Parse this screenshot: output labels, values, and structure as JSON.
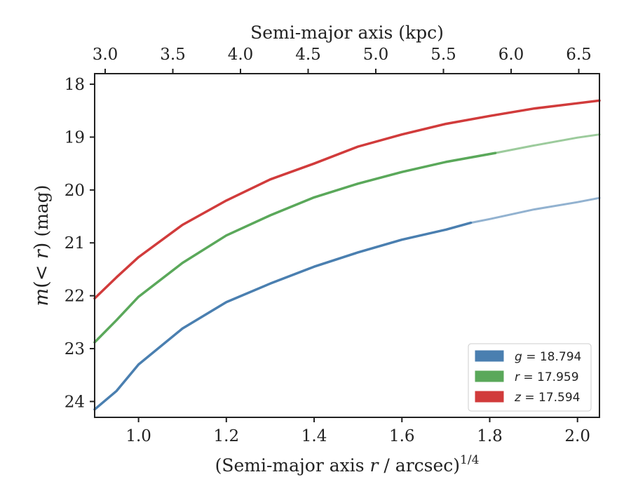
{
  "chart_data": {
    "type": "line",
    "xlabel": "(Semi-major axis r / arcsec)^1/4",
    "ylabel": "m(< r) (mag)",
    "top_xlabel": "Semi-major axis (kpc)",
    "xlim": [
      0.9,
      2.05
    ],
    "ylim": [
      24.3,
      17.8
    ],
    "y_inverted": true,
    "x_ticks": [
      "1.0",
      "1.2",
      "1.4",
      "1.6",
      "1.8",
      "2.0"
    ],
    "y_ticks": [
      "18",
      "19",
      "20",
      "21",
      "22",
      "23",
      "24"
    ],
    "top_x_ticks": [
      "3.0",
      "3.5",
      "4.0",
      "4.5",
      "5.0",
      "5.5",
      "6.0",
      "6.5"
    ],
    "grid": false,
    "legend_position": "lower-right",
    "series": [
      {
        "name": "g = 18.794",
        "color": "#4a7fb0",
        "x": [
          0.9,
          0.95,
          1.0,
          1.1,
          1.2,
          1.3,
          1.4,
          1.5,
          1.6,
          1.7,
          1.757,
          1.8,
          1.9,
          2.0,
          2.05
        ],
        "y": [
          24.15,
          23.8,
          23.3,
          22.62,
          22.12,
          21.77,
          21.45,
          21.18,
          20.94,
          20.75,
          20.62,
          20.55,
          20.37,
          20.23,
          20.15
        ],
        "measured_until": 1.757
      },
      {
        "name": "r = 17.959",
        "color": "#5aa85a",
        "x": [
          0.9,
          0.95,
          1.0,
          1.1,
          1.2,
          1.3,
          1.4,
          1.5,
          1.6,
          1.7,
          1.813,
          1.9,
          2.0,
          2.05
        ],
        "y": [
          22.88,
          22.46,
          22.02,
          21.38,
          20.86,
          20.48,
          20.14,
          19.88,
          19.66,
          19.47,
          19.3,
          19.16,
          19.01,
          18.95
        ],
        "measured_until": 1.813
      },
      {
        "name": "z = 17.594",
        "color": "#d13b3b",
        "x": [
          0.9,
          0.95,
          1.0,
          1.1,
          1.2,
          1.3,
          1.4,
          1.5,
          1.6,
          1.7,
          1.8,
          1.9,
          2.0,
          2.05
        ],
        "y": [
          22.05,
          21.65,
          21.27,
          20.66,
          20.2,
          19.8,
          19.5,
          19.18,
          18.95,
          18.75,
          18.6,
          18.46,
          18.36,
          18.31
        ],
        "measured_until": 2.05
      }
    ]
  }
}
